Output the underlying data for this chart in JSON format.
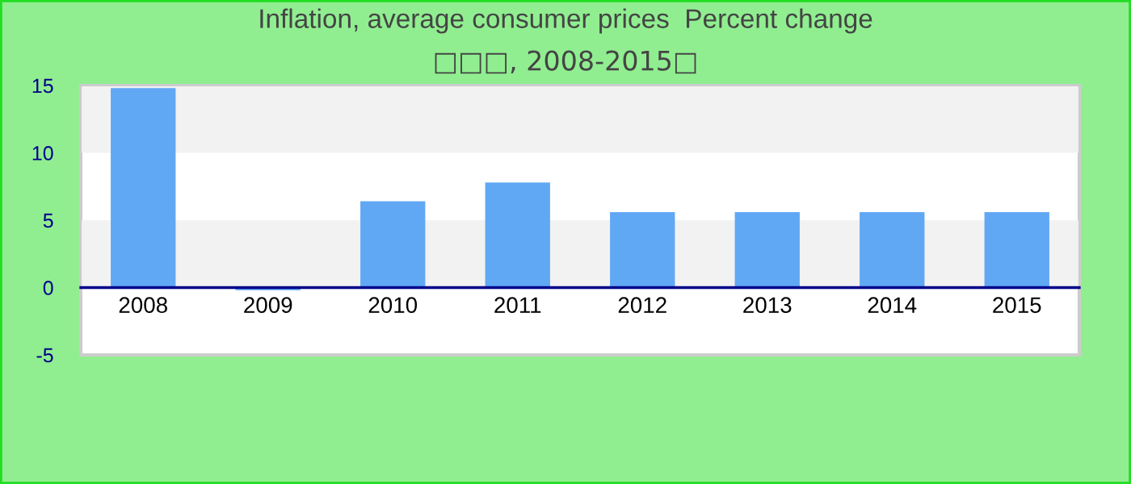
{
  "chart_data": {
    "type": "bar",
    "title": "Inflation, average consumer prices  Percent change",
    "subtitle": "□□□, 2008-2015□",
    "categories": [
      "2008",
      "2009",
      "2010",
      "2011",
      "2012",
      "2013",
      "2014",
      "2015"
    ],
    "values": [
      14.8,
      -0.2,
      6.4,
      7.8,
      5.6,
      5.6,
      5.6,
      5.6
    ],
    "color": "#61a8f4",
    "ylim": [
      -5,
      15
    ],
    "yticks": [
      -5,
      0,
      5,
      10,
      15
    ],
    "bands": [
      {
        "axis": "y",
        "from": 10,
        "to": 15,
        "color": "#f2f2f2"
      },
      {
        "axis": "y",
        "from": 0,
        "to": 5,
        "color": "#f2f2f2"
      }
    ]
  }
}
